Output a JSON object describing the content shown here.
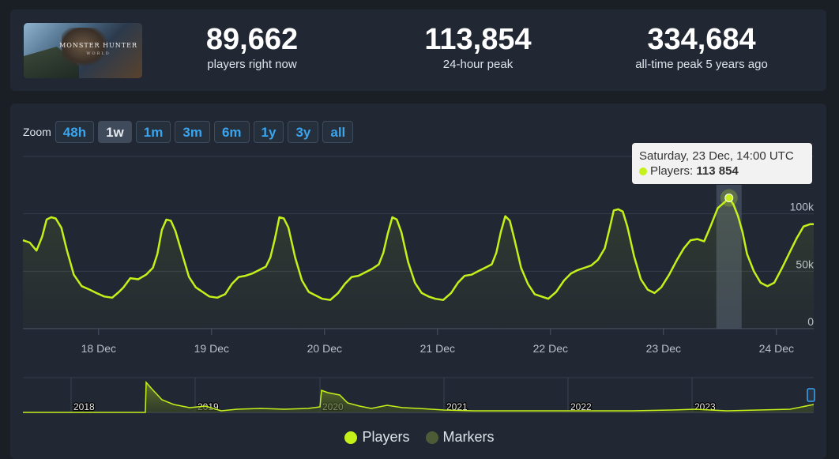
{
  "stats": {
    "thumb_title": "MONSTER HUNTER",
    "thumb_subtitle": "WORLD",
    "items": [
      {
        "value": "89,662",
        "label": "players right now"
      },
      {
        "value": "113,854",
        "label": "24-hour peak"
      },
      {
        "value": "334,684",
        "label": "all-time peak 5 years ago"
      }
    ]
  },
  "zoom": {
    "label": "Zoom",
    "buttons": [
      "48h",
      "1w",
      "1m",
      "3m",
      "6m",
      "1y",
      "3y",
      "all"
    ],
    "active": "1w"
  },
  "tooltip": {
    "title": "Saturday, 23 Dec, 14:00 UTC",
    "series": "Players:",
    "value": "113 854"
  },
  "legend": {
    "items": [
      {
        "name": "Players",
        "color": "#c5f01a"
      },
      {
        "name": "Markers",
        "color": "#4d5c36"
      }
    ]
  },
  "colors": {
    "line": "#c5f01a",
    "background": "#212733",
    "accent": "#3aa5ef"
  },
  "chart_data": [
    {
      "type": "line",
      "x_tick_labels": [
        "18 Dec",
        "19 Dec",
        "20 Dec",
        "21 Dec",
        "22 Dec",
        "23 Dec",
        "24 Dec"
      ],
      "y_tick_labels": [
        "0",
        "50k",
        "100k"
      ],
      "ylim": [
        0,
        150000
      ],
      "xlim": [
        17.33,
        24.33
      ],
      "grid": true,
      "highlight": {
        "x": 23.58,
        "y": 113854
      },
      "series": [
        {
          "name": "Players",
          "x": [
            17.33,
            17.39,
            17.45,
            17.5,
            17.54,
            17.58,
            17.62,
            17.67,
            17.72,
            17.78,
            17.85,
            17.92,
            17.98,
            18.05,
            18.12,
            18.18,
            18.22,
            18.28,
            18.35,
            18.42,
            18.48,
            18.52,
            18.56,
            18.6,
            18.64,
            18.68,
            18.74,
            18.8,
            18.86,
            18.92,
            18.98,
            19.05,
            19.12,
            19.18,
            19.24,
            19.3,
            19.36,
            19.42,
            19.48,
            19.52,
            19.56,
            19.6,
            19.64,
            19.68,
            19.74,
            19.8,
            19.86,
            19.92,
            19.98,
            20.05,
            20.12,
            20.18,
            20.24,
            20.3,
            20.36,
            20.42,
            20.48,
            20.52,
            20.56,
            20.6,
            20.64,
            20.68,
            20.74,
            20.8,
            20.86,
            20.92,
            20.98,
            21.05,
            21.12,
            21.18,
            21.24,
            21.3,
            21.36,
            21.42,
            21.48,
            21.52,
            21.56,
            21.6,
            21.64,
            21.68,
            21.74,
            21.8,
            21.86,
            21.92,
            21.98,
            22.05,
            22.12,
            22.18,
            22.24,
            22.3,
            22.36,
            22.42,
            22.48,
            22.52,
            22.56,
            22.6,
            22.64,
            22.68,
            22.74,
            22.8,
            22.86,
            22.92,
            22.98,
            23.05,
            23.12,
            23.18,
            23.24,
            23.3,
            23.36,
            23.42,
            23.48,
            23.54,
            23.58,
            23.62,
            23.66,
            23.7,
            23.74,
            23.8,
            23.86,
            23.92,
            23.98,
            24.05,
            24.12,
            24.18,
            24.24,
            24.3,
            24.33
          ],
          "y": [
            77000,
            75000,
            68000,
            80000,
            95000,
            97000,
            96000,
            88000,
            68000,
            47000,
            37000,
            34000,
            31000,
            28000,
            27000,
            32000,
            36000,
            44000,
            43000,
            47000,
            53000,
            65000,
            86000,
            95000,
            94000,
            85000,
            65000,
            45000,
            36000,
            32000,
            28000,
            27000,
            30000,
            39000,
            45000,
            46000,
            48000,
            51000,
            54000,
            62000,
            78000,
            97000,
            96000,
            88000,
            62000,
            42000,
            32000,
            29000,
            26000,
            25000,
            31000,
            39000,
            45000,
            46000,
            49000,
            52000,
            56000,
            66000,
            83000,
            97000,
            95000,
            84000,
            58000,
            40000,
            31000,
            28000,
            26000,
            25000,
            31000,
            40000,
            46000,
            47000,
            50000,
            53000,
            56000,
            66000,
            84000,
            98000,
            94000,
            78000,
            53000,
            39000,
            30000,
            28000,
            26000,
            32000,
            42000,
            48000,
            51000,
            53000,
            55000,
            60000,
            70000,
            86000,
            103000,
            104000,
            102000,
            89000,
            63000,
            43000,
            34000,
            31000,
            36000,
            47000,
            60000,
            70000,
            77000,
            78000,
            76000,
            90000,
            105000,
            110000,
            113854,
            108000,
            98000,
            84000,
            65000,
            50000,
            40000,
            37000,
            40000,
            53000,
            67000,
            79000,
            89000,
            91000,
            91000
          ]
        }
      ]
    },
    {
      "type": "area",
      "x_tick_labels": [
        "2018",
        "2019",
        "2020",
        "2021",
        "2022",
        "2023"
      ]
    }
  ]
}
